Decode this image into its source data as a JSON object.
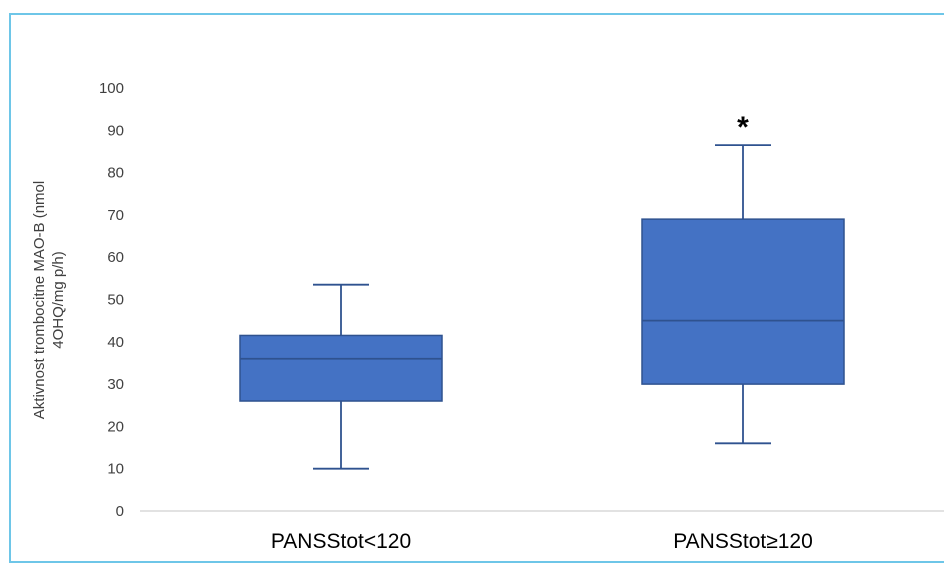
{
  "chart_data": {
    "type": "box",
    "ylabel_lines": [
      "Aktivnost trombocitne MAO-B (nmol",
      "4OHQ/mg p/h)"
    ],
    "ylim": [
      0,
      100
    ],
    "yticks": [
      "0",
      "10",
      "20",
      "30",
      "40",
      "50",
      "60",
      "70",
      "80",
      "90",
      "100"
    ],
    "categories": [
      "PANSStot<120",
      "PANSStot≥120"
    ],
    "boxes": [
      {
        "category": "PANSStot<120",
        "min": 10,
        "q1": 26,
        "median": 36,
        "q3": 41.5,
        "max": 53.5,
        "annotation": ""
      },
      {
        "category": "PANSStot≥120",
        "min": 16,
        "q1": 30,
        "median": 45,
        "q3": 69,
        "max": 86.5,
        "annotation": "*"
      }
    ],
    "grid": false,
    "colors": {
      "box_fill": "#4472c4",
      "box_stroke": "#2f528f",
      "axis": "#d9d9d9",
      "frame": "#6ec6e8"
    }
  }
}
